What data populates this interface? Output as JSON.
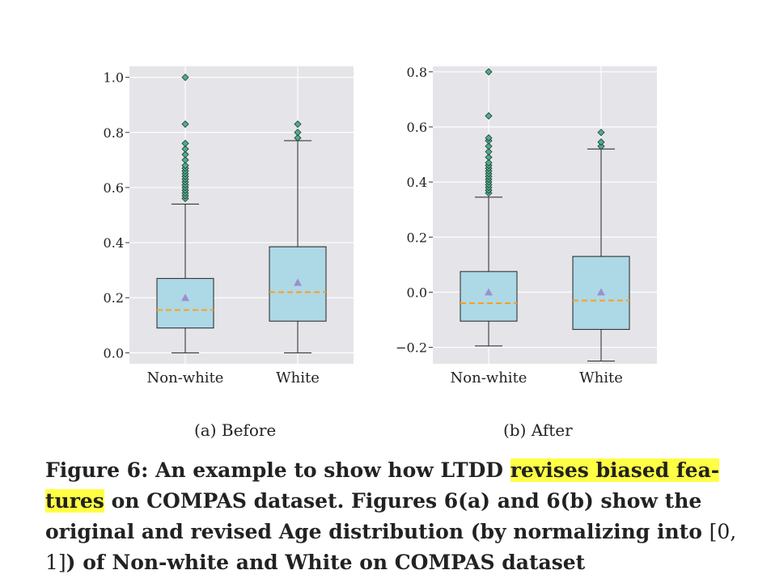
{
  "chart_data": [
    {
      "type": "box",
      "subcaption": "(a) Before",
      "categories": [
        "Non-white",
        "White"
      ],
      "ylim": [
        -0.04,
        1.04
      ],
      "yticks": [
        "0.0",
        "0.2",
        "0.4",
        "0.6",
        "0.8",
        "1.0"
      ],
      "grid": true,
      "series": [
        {
          "q1": 0.09,
          "median": 0.155,
          "q3": 0.27,
          "mean": 0.2,
          "whisker_low": 0.0,
          "whisker_high": 0.54,
          "outliers": [
            0.56,
            0.57,
            0.58,
            0.59,
            0.6,
            0.61,
            0.62,
            0.63,
            0.64,
            0.65,
            0.66,
            0.67,
            0.68,
            0.7,
            0.72,
            0.74,
            0.76,
            0.83,
            1.0
          ]
        },
        {
          "q1": 0.115,
          "median": 0.22,
          "q3": 0.385,
          "mean": 0.255,
          "whisker_low": 0.0,
          "whisker_high": 0.77,
          "outliers": [
            0.78,
            0.8,
            0.83
          ]
        }
      ]
    },
    {
      "type": "box",
      "subcaption": "(b) After",
      "categories": [
        "Non-white",
        "White"
      ],
      "ylim": [
        -0.26,
        0.82
      ],
      "yticks": [
        "−0.2",
        "0.0",
        "0.2",
        "0.4",
        "0.6",
        "0.8"
      ],
      "grid": true,
      "series": [
        {
          "q1": -0.105,
          "median": -0.04,
          "q3": 0.075,
          "mean": 0.0,
          "whisker_low": -0.195,
          "whisker_high": 0.345,
          "outliers": [
            0.36,
            0.37,
            0.38,
            0.39,
            0.4,
            0.41,
            0.42,
            0.43,
            0.44,
            0.45,
            0.46,
            0.47,
            0.49,
            0.51,
            0.53,
            0.55,
            0.56,
            0.64,
            0.8
          ]
        },
        {
          "q1": -0.135,
          "median": -0.03,
          "q3": 0.13,
          "mean": 0.0,
          "whisker_low": -0.25,
          "whisker_high": 0.52,
          "outliers": [
            0.53,
            0.545,
            0.58
          ]
        }
      ]
    }
  ],
  "caption": {
    "part1": "Figure 6: An example to show how LTDD ",
    "highlight1": "revises biased fea-",
    "highlight2": "tures",
    "part2": " on COMPAS dataset. Figures 6(a) and 6(b) show the original and revised Age distribution (by normalizing into ",
    "interval": "[0, 1]",
    "part3": ") of Non-white and White on COMPAS dataset"
  },
  "colors": {
    "plot_bg": "#e5e5e9",
    "box_fill": "#add8e6",
    "median": "#ff9f1a",
    "mean": "#9b8fd0",
    "outlier": "#4fae8e"
  }
}
